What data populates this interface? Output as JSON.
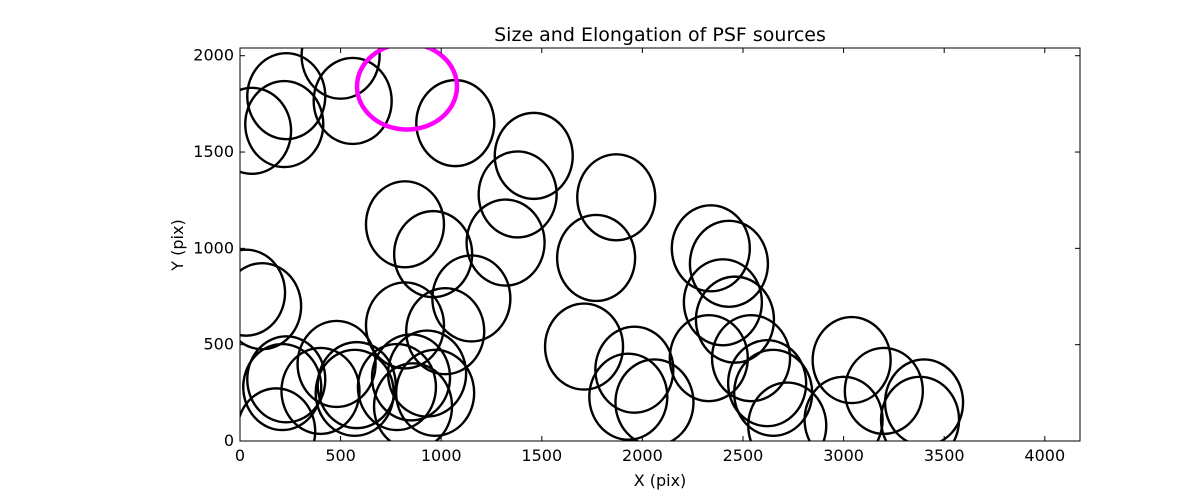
{
  "chart_data": {
    "type": "scatter",
    "marker": "ellipse",
    "title": "Size and Elongation of PSF sources",
    "xlabel": "X (pix)",
    "ylabel": "Y (pix)",
    "xlim": [
      0,
      4175
    ],
    "ylim": [
      0,
      2040
    ],
    "xticks": [
      0,
      500,
      1000,
      1500,
      2000,
      2500,
      3000,
      3500,
      4000
    ],
    "yticks": [
      0,
      500,
      1000,
      1500,
      2000
    ],
    "xtick_labels": [
      "0",
      "500",
      "1000",
      "1500",
      "2000",
      "2500",
      "3000",
      "3500",
      "4000"
    ],
    "ytick_labels": [
      "0",
      "500",
      "1000",
      "1500",
      "2000"
    ],
    "colors": {
      "default": "#000000",
      "highlight": "#ff00ff"
    },
    "highlight": {
      "x": 830,
      "y": 1840
    },
    "points": [
      {
        "x": 500,
        "y": 2000
      },
      {
        "x": 230,
        "y": 1790
      },
      {
        "x": 560,
        "y": 1765
      },
      {
        "x": 220,
        "y": 1645
      },
      {
        "x": 60,
        "y": 1610
      },
      {
        "x": 1070,
        "y": 1650
      },
      {
        "x": 1460,
        "y": 1480
      },
      {
        "x": 1380,
        "y": 1280
      },
      {
        "x": 1870,
        "y": 1265
      },
      {
        "x": 820,
        "y": 1125
      },
      {
        "x": 960,
        "y": 970
      },
      {
        "x": 1320,
        "y": 1030
      },
      {
        "x": 1770,
        "y": 950
      },
      {
        "x": 2340,
        "y": 1000
      },
      {
        "x": 2430,
        "y": 920
      },
      {
        "x": 30,
        "y": 770
      },
      {
        "x": 110,
        "y": 700
      },
      {
        "x": 1150,
        "y": 740
      },
      {
        "x": 2400,
        "y": 720
      },
      {
        "x": 2460,
        "y": 630
      },
      {
        "x": 820,
        "y": 600
      },
      {
        "x": 1020,
        "y": 570
      },
      {
        "x": 1710,
        "y": 490
      },
      {
        "x": 230,
        "y": 320
      },
      {
        "x": 210,
        "y": 280
      },
      {
        "x": 480,
        "y": 400
      },
      {
        "x": 400,
        "y": 260
      },
      {
        "x": 570,
        "y": 250
      },
      {
        "x": 580,
        "y": 290
      },
      {
        "x": 850,
        "y": 330
      },
      {
        "x": 780,
        "y": 280
      },
      {
        "x": 930,
        "y": 350
      },
      {
        "x": 970,
        "y": 250
      },
      {
        "x": 860,
        "y": 180
      },
      {
        "x": 180,
        "y": 50
      },
      {
        "x": 1960,
        "y": 370
      },
      {
        "x": 1930,
        "y": 230
      },
      {
        "x": 2060,
        "y": 200
      },
      {
        "x": 2330,
        "y": 430
      },
      {
        "x": 2540,
        "y": 430
      },
      {
        "x": 2620,
        "y": 300
      },
      {
        "x": 2650,
        "y": 250
      },
      {
        "x": 2720,
        "y": 80
      },
      {
        "x": 3040,
        "y": 420
      },
      {
        "x": 3000,
        "y": 110
      },
      {
        "x": 3200,
        "y": 260
      },
      {
        "x": 3400,
        "y": 200
      },
      {
        "x": 3380,
        "y": 110
      }
    ]
  }
}
